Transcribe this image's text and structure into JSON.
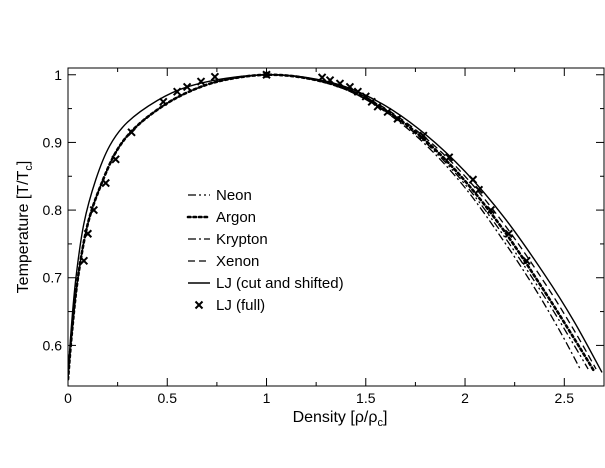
{
  "chart_data": {
    "type": "line",
    "title": "",
    "xlabel": "Density [ρ/ρ",
    "xlabel_sub": "c",
    "xlabel_end": "]",
    "ylabel": "Temperature [T/T",
    "ylabel_sub": "c",
    "ylabel_end": "]",
    "xlim": [
      0,
      2.7
    ],
    "ylim": [
      0.54,
      1.01
    ],
    "x_ticks": [
      0,
      0.5,
      1,
      1.5,
      2,
      2.5
    ],
    "x_tick_labels": [
      "0",
      "0.5",
      "1",
      "1.5",
      "2",
      "2.5"
    ],
    "y_ticks": [
      0.6,
      0.7,
      0.8,
      0.9,
      1.0
    ],
    "y_tick_labels": [
      "0.6",
      "0.7",
      "0.8",
      "0.9",
      "1"
    ],
    "grid": false,
    "legend_position": "center-left",
    "series": [
      {
        "name": "Neon",
        "style": "dash-dot-dot",
        "points": [
          [
            0.0,
            0.55
          ],
          [
            0.02,
            0.62
          ],
          [
            0.05,
            0.7
          ],
          [
            0.1,
            0.78
          ],
          [
            0.17,
            0.84
          ],
          [
            0.25,
            0.89
          ],
          [
            0.35,
            0.925
          ],
          [
            0.5,
            0.958
          ],
          [
            0.65,
            0.98
          ],
          [
            0.8,
            0.993
          ],
          [
            1.0,
            1.0
          ],
          [
            1.2,
            0.995
          ],
          [
            1.4,
            0.978
          ],
          [
            1.6,
            0.946
          ],
          [
            1.8,
            0.9
          ],
          [
            2.0,
            0.838
          ],
          [
            2.2,
            0.76
          ],
          [
            2.4,
            0.672
          ],
          [
            2.55,
            0.6
          ],
          [
            2.62,
            0.565
          ]
        ]
      },
      {
        "name": "Argon",
        "style": "dotted",
        "points": [
          [
            0.0,
            0.55
          ],
          [
            0.02,
            0.62
          ],
          [
            0.05,
            0.7
          ],
          [
            0.1,
            0.78
          ],
          [
            0.17,
            0.84
          ],
          [
            0.25,
            0.89
          ],
          [
            0.35,
            0.925
          ],
          [
            0.5,
            0.958
          ],
          [
            0.65,
            0.98
          ],
          [
            0.8,
            0.993
          ],
          [
            1.0,
            1.0
          ],
          [
            1.2,
            0.995
          ],
          [
            1.4,
            0.979
          ],
          [
            1.6,
            0.948
          ],
          [
            1.8,
            0.903
          ],
          [
            2.0,
            0.843
          ],
          [
            2.2,
            0.768
          ],
          [
            2.4,
            0.68
          ],
          [
            2.55,
            0.61
          ],
          [
            2.65,
            0.562
          ]
        ]
      },
      {
        "name": "Krypton",
        "style": "dash-dot",
        "points": [
          [
            0.0,
            0.55
          ],
          [
            0.02,
            0.62
          ],
          [
            0.05,
            0.7
          ],
          [
            0.1,
            0.78
          ],
          [
            0.17,
            0.84
          ],
          [
            0.25,
            0.89
          ],
          [
            0.35,
            0.925
          ],
          [
            0.5,
            0.958
          ],
          [
            0.65,
            0.98
          ],
          [
            0.8,
            0.993
          ],
          [
            1.0,
            1.0
          ],
          [
            1.2,
            0.995
          ],
          [
            1.4,
            0.978
          ],
          [
            1.6,
            0.945
          ],
          [
            1.8,
            0.897
          ],
          [
            2.0,
            0.833
          ],
          [
            2.2,
            0.752
          ],
          [
            2.35,
            0.685
          ],
          [
            2.48,
            0.62
          ],
          [
            2.58,
            0.565
          ]
        ]
      },
      {
        "name": "Xenon",
        "style": "dashed",
        "points": [
          [
            0.0,
            0.55
          ],
          [
            0.02,
            0.62
          ],
          [
            0.05,
            0.7
          ],
          [
            0.1,
            0.78
          ],
          [
            0.17,
            0.84
          ],
          [
            0.25,
            0.89
          ],
          [
            0.35,
            0.925
          ],
          [
            0.5,
            0.958
          ],
          [
            0.65,
            0.98
          ],
          [
            0.8,
            0.993
          ],
          [
            1.0,
            1.0
          ],
          [
            1.2,
            0.995
          ],
          [
            1.4,
            0.98
          ],
          [
            1.6,
            0.95
          ],
          [
            1.8,
            0.907
          ],
          [
            2.0,
            0.85
          ],
          [
            2.2,
            0.778
          ],
          [
            2.4,
            0.693
          ],
          [
            2.55,
            0.622
          ],
          [
            2.66,
            0.565
          ]
        ]
      },
      {
        "name": "LJ (cut and shifted)",
        "style": "solid",
        "points": [
          [
            0.0,
            0.55
          ],
          [
            0.015,
            0.62
          ],
          [
            0.04,
            0.7
          ],
          [
            0.08,
            0.78
          ],
          [
            0.14,
            0.845
          ],
          [
            0.21,
            0.895
          ],
          [
            0.3,
            0.93
          ],
          [
            0.45,
            0.962
          ],
          [
            0.6,
            0.982
          ],
          [
            0.8,
            0.995
          ],
          [
            1.0,
            1.0
          ],
          [
            1.2,
            0.996
          ],
          [
            1.4,
            0.982
          ],
          [
            1.6,
            0.954
          ],
          [
            1.8,
            0.912
          ],
          [
            2.0,
            0.857
          ],
          [
            2.2,
            0.788
          ],
          [
            2.4,
            0.705
          ],
          [
            2.55,
            0.635
          ],
          [
            2.69,
            0.56
          ]
        ]
      }
    ],
    "markers": {
      "name": "LJ (full)",
      "symbol": "x",
      "points": [
        [
          0.08,
          0.725
        ],
        [
          0.1,
          0.765
        ],
        [
          0.13,
          0.8
        ],
        [
          0.19,
          0.84
        ],
        [
          0.24,
          0.875
        ],
        [
          0.32,
          0.915
        ],
        [
          0.48,
          0.96
        ],
        [
          0.55,
          0.975
        ],
        [
          0.6,
          0.982
        ],
        [
          0.67,
          0.99
        ],
        [
          0.74,
          0.997
        ],
        [
          1.0,
          1.0
        ],
        [
          1.28,
          0.996
        ],
        [
          1.32,
          0.992
        ],
        [
          1.37,
          0.987
        ],
        [
          1.42,
          0.982
        ],
        [
          1.46,
          0.975
        ],
        [
          1.5,
          0.968
        ],
        [
          1.53,
          0.96
        ],
        [
          1.56,
          0.953
        ],
        [
          1.61,
          0.945
        ],
        [
          1.66,
          0.935
        ],
        [
          1.79,
          0.91
        ],
        [
          1.92,
          0.878
        ],
        [
          2.04,
          0.845
        ],
        [
          2.07,
          0.83
        ],
        [
          2.13,
          0.8
        ],
        [
          2.22,
          0.765
        ],
        [
          2.31,
          0.725
        ]
      ]
    }
  }
}
